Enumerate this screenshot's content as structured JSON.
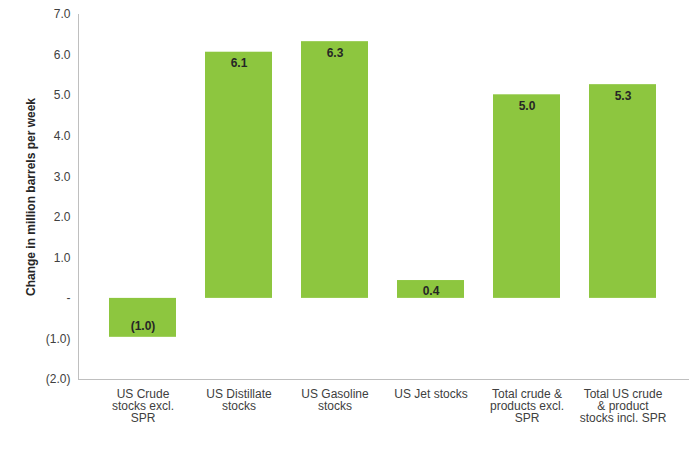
{
  "chart_data": {
    "type": "bar",
    "y_label": "Change in million barrels per week",
    "categories": [
      "US Crude\nstocks excl.\nSPR",
      "US Distillate\nstocks",
      "US Gasoline\nstocks",
      "US Jet stocks",
      "Total crude &\nproducts excl.\nSPR",
      "Total US crude\n& product\nstocks incl. SPR"
    ],
    "values": [
      -0.96,
      6.07,
      6.33,
      0.44,
      5.02,
      5.27
    ],
    "value_labels": [
      "(1.0)",
      "6.1",
      "6.3",
      "0.4",
      "5.0",
      "5.3"
    ],
    "color": "#8dc63f",
    "ylim": [
      -2,
      7
    ],
    "yticks": [
      {
        "value": -2,
        "label": "(2.0)"
      },
      {
        "value": -1,
        "label": "(1.0)"
      },
      {
        "value": 0,
        "label": "-"
      },
      {
        "value": 1,
        "label": "1.0"
      },
      {
        "value": 2,
        "label": "2.0"
      },
      {
        "value": 3,
        "label": "3.0"
      },
      {
        "value": 4,
        "label": "4.0"
      },
      {
        "value": 5,
        "label": "5.0"
      },
      {
        "value": 6,
        "label": "6.0"
      },
      {
        "value": 7,
        "label": "7.0"
      }
    ],
    "grid": false,
    "data_labels": true
  }
}
